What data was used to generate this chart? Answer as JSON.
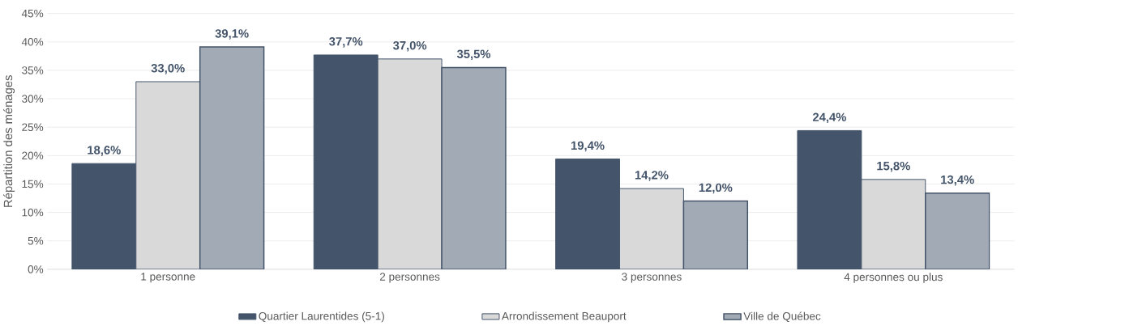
{
  "chart_data": {
    "type": "bar",
    "ylabel": "Répartition des ménages",
    "categories": [
      "1 personne",
      "2 personnes",
      "3 personnes",
      "4 personnes ou plus"
    ],
    "series": [
      {
        "name": "Quartier Laurentides (5-1)",
        "color": "#44546a",
        "values": [
          18.6,
          37.7,
          19.4,
          24.4
        ],
        "value_labels": [
          "18,6%",
          "37,7%",
          "19,4%",
          "24,4%"
        ]
      },
      {
        "name": "Arrondissement Beauport",
        "color": "#d9d9d9",
        "values": [
          33.0,
          37.0,
          14.2,
          15.8
        ],
        "value_labels": [
          "33,0%",
          "37,0%",
          "14,2%",
          "15,8%"
        ]
      },
      {
        "name": "Ville de Québec",
        "color": "#a2aab5",
        "values": [
          39.1,
          35.5,
          12.0,
          13.4
        ],
        "value_labels": [
          "39,1%",
          "35,5%",
          "12,0%",
          "13,4%"
        ]
      }
    ],
    "ylim": [
      0,
      45
    ],
    "yticks": [
      {
        "value": 0,
        "label": "0%"
      },
      {
        "value": 5,
        "label": "5%"
      },
      {
        "value": 10,
        "label": "10%"
      },
      {
        "value": 15,
        "label": "15%"
      },
      {
        "value": 20,
        "label": "20%"
      },
      {
        "value": 25,
        "label": "25%"
      },
      {
        "value": 30,
        "label": "30%"
      },
      {
        "value": 35,
        "label": "35%"
      },
      {
        "value": 40,
        "label": "40%"
      },
      {
        "value": 45,
        "label": "45%"
      }
    ],
    "grid": "y",
    "legend": "bottom"
  }
}
